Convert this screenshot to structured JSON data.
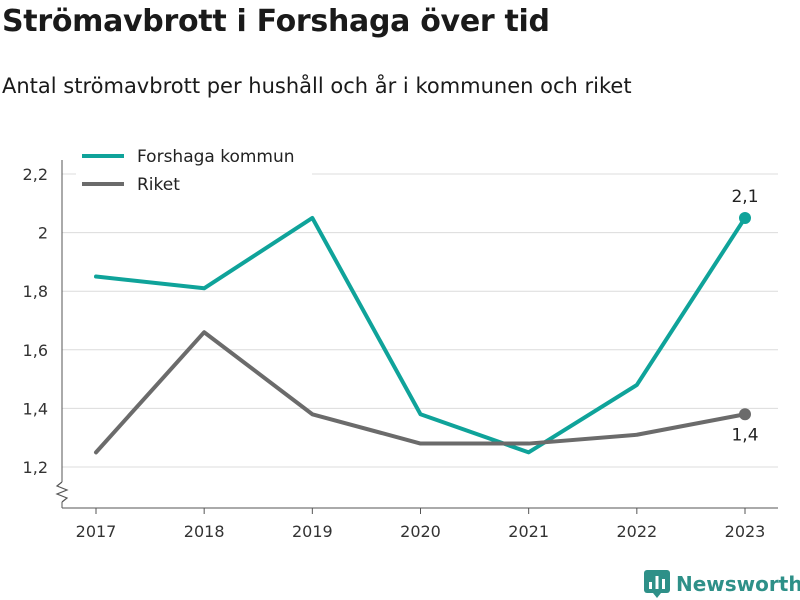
{
  "title": "Strömavbrott i Forshaga över tid",
  "subtitle": "Antal strömavbrott per hushåll och år i kommunen och riket",
  "brand": {
    "name": "Newsworthy"
  },
  "chart_data": {
    "type": "line",
    "x": [
      "2017",
      "2018",
      "2019",
      "2020",
      "2021",
      "2022",
      "2023"
    ],
    "yticks": [
      "1,2",
      "1,4",
      "1,6",
      "1,8",
      "2",
      "2,2"
    ],
    "ytick_values": [
      1.2,
      1.4,
      1.6,
      1.8,
      2.0,
      2.2
    ],
    "ylim": [
      1.06,
      2.2
    ],
    "y_axis_break": true,
    "grid": true,
    "legend_position": "top-left",
    "series": [
      {
        "name": "Forshaga kommun",
        "color": "#0fa39a",
        "values": [
          1.85,
          1.81,
          2.05,
          1.38,
          1.25,
          1.48,
          2.05
        ],
        "end_label": "2,1"
      },
      {
        "name": "Riket",
        "color": "#6b6b6b",
        "values": [
          1.25,
          1.66,
          1.38,
          1.28,
          1.28,
          1.31,
          1.38
        ],
        "end_label": "1,4"
      }
    ]
  }
}
